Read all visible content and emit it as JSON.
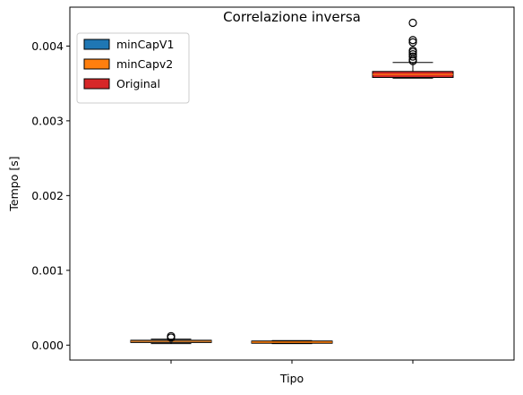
{
  "chart_data": {
    "type": "box",
    "title": "Correlazione inversa",
    "xlabel": "Tipo",
    "ylabel": "Tempo [s]",
    "ylim": [
      -0.0002,
      0.00452
    ],
    "yticks": [
      0.0,
      0.001,
      0.002,
      0.003,
      0.004
    ],
    "ytick_labels": [
      "0.000",
      "0.001",
      "0.002",
      "0.003",
      "0.004"
    ],
    "grid": false,
    "legend_position": "top-left",
    "series": [
      {
        "name": "minCapV1",
        "color": "#1f77b4",
        "median": 5e-05,
        "q1": 4e-05,
        "q3": 6e-05,
        "whisker_low": 2e-05,
        "whisker_high": 8e-05,
        "outliers": [
          0.0001,
          0.00012
        ]
      },
      {
        "name": "minCapv2",
        "color": "#ff7f0e",
        "median": 4e-05,
        "q1": 3e-05,
        "q3": 5e-05,
        "whisker_low": 2e-05,
        "whisker_high": 6e-05,
        "outliers": []
      },
      {
        "name": "Original",
        "color": "#d62728",
        "median": 0.00362,
        "q1": 0.00358,
        "q3": 0.00366,
        "whisker_low": 0.00357,
        "whisker_high": 0.00378,
        "outliers": [
          0.0038,
          0.00382,
          0.00386,
          0.00389,
          0.00392,
          0.00394,
          0.00405,
          0.00408,
          0.00431
        ]
      }
    ]
  }
}
